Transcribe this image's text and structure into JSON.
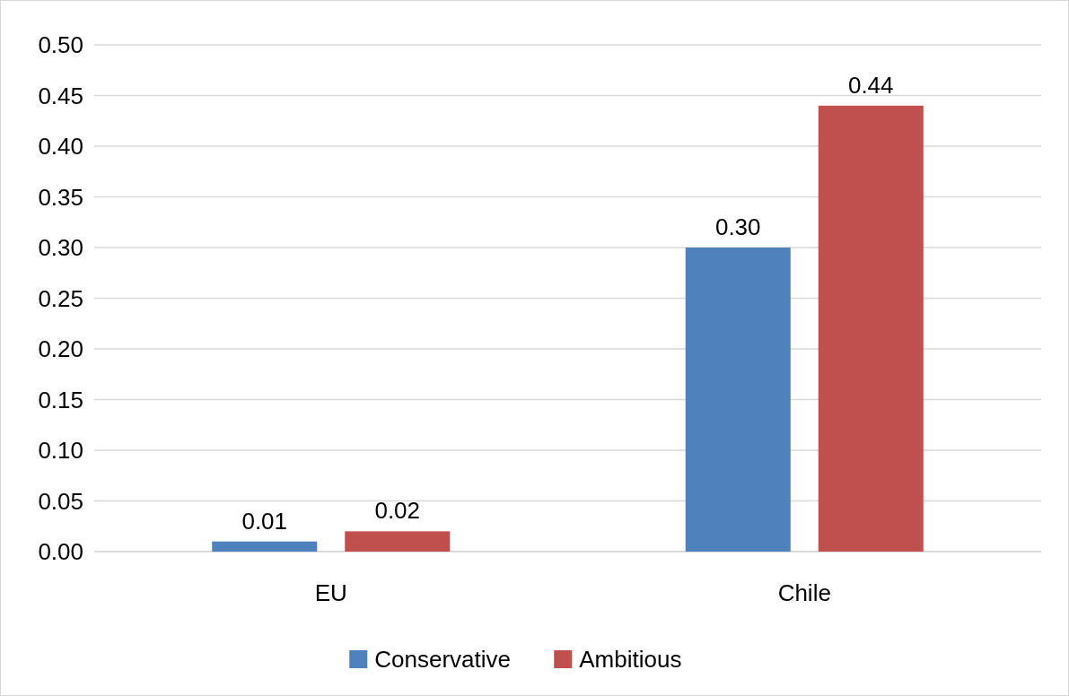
{
  "chart_data": {
    "type": "bar",
    "categories": [
      "EU",
      "Chile"
    ],
    "series": [
      {
        "name": "Conservative",
        "color": "#4f81bd",
        "values": [
          0.01,
          0.3
        ],
        "value_labels": [
          "0.01",
          "0.30"
        ]
      },
      {
        "name": "Ambitious",
        "color": "#c0504d",
        "values": [
          0.02,
          0.44
        ],
        "value_labels": [
          "0.02",
          "0.44"
        ]
      }
    ],
    "ylim": [
      0,
      0.5
    ],
    "yticks": [
      {
        "value": 0,
        "label": "0.00"
      },
      {
        "value": 0.05,
        "label": "0.05"
      },
      {
        "value": 0.1,
        "label": "0.10"
      },
      {
        "value": 0.15,
        "label": "0.15"
      },
      {
        "value": 0.2,
        "label": "0.20"
      },
      {
        "value": 0.25,
        "label": "0.25"
      },
      {
        "value": 0.3,
        "label": "0.30"
      },
      {
        "value": 0.35,
        "label": "0.35"
      },
      {
        "value": 0.4,
        "label": "0.40"
      },
      {
        "value": 0.45,
        "label": "0.45"
      },
      {
        "value": 0.5,
        "label": "0.50"
      }
    ],
    "grid": "y",
    "legend": "bottom"
  }
}
